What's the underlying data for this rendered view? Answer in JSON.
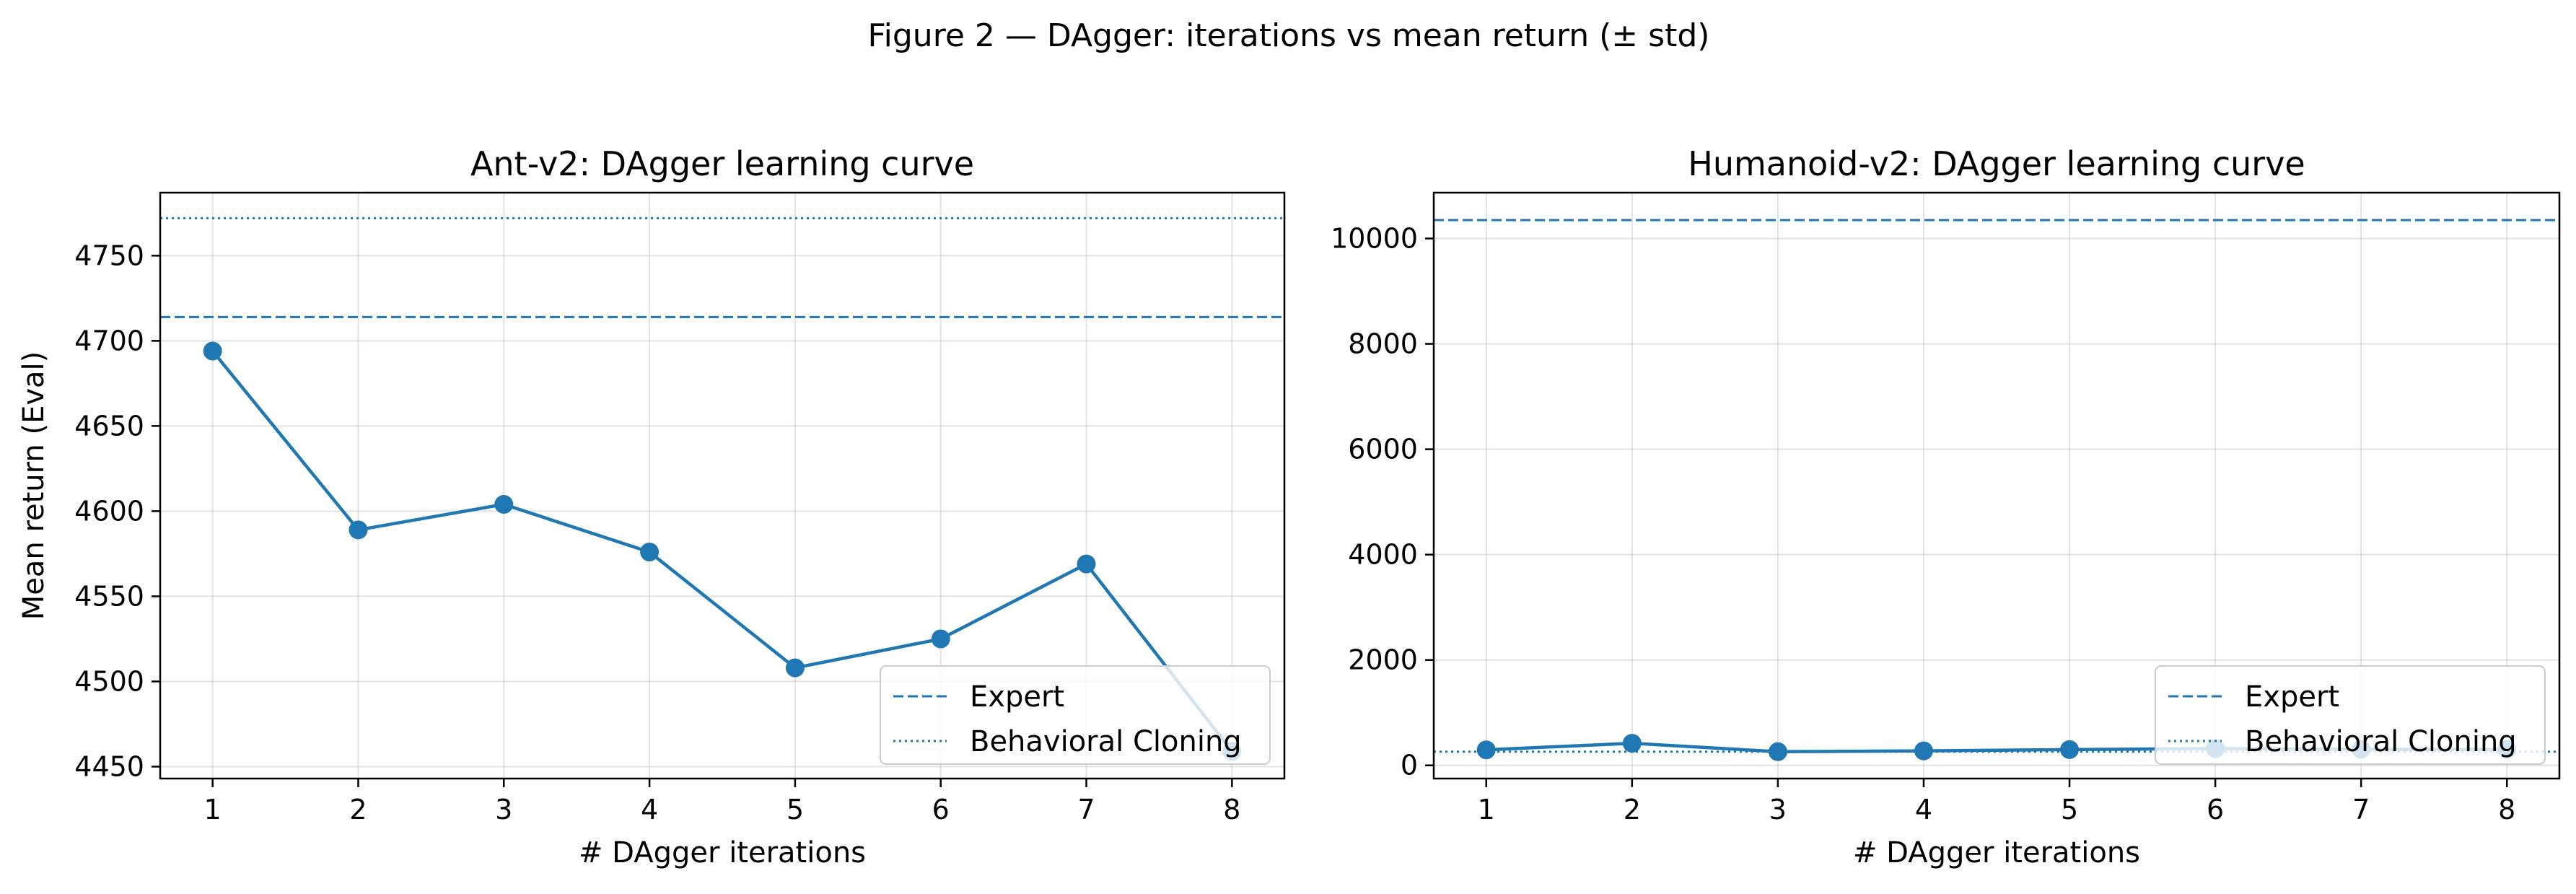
{
  "figure": {
    "suptitle": "Figure 2 — DAgger: iterations vs mean return (± std)"
  },
  "colors": {
    "line": "#1f77b4",
    "legend_bg": "#ffffff",
    "legend_border": "#cccccc"
  },
  "chart_data": [
    {
      "type": "line",
      "title": "Ant-v2: DAgger learning curve",
      "xlabel": "# DAgger iterations",
      "ylabel": "Mean return (Eval)",
      "x": [
        1,
        2,
        3,
        4,
        5,
        6,
        7,
        8
      ],
      "xlim": [
        0.64,
        8.36
      ],
      "ylim": [
        4443,
        4787
      ],
      "xticks": [
        1,
        2,
        3,
        4,
        5,
        6,
        7,
        8
      ],
      "yticks": [
        4450,
        4500,
        4550,
        4600,
        4650,
        4700,
        4750
      ],
      "series": [
        {
          "values": [
            4694,
            4589,
            4604,
            4576,
            4508,
            4525,
            4569,
            4459
          ]
        }
      ],
      "hlines": [
        {
          "name": "Expert",
          "value": 4714,
          "style": "dashed"
        },
        {
          "name": "Behavioral Cloning",
          "value": 4772,
          "style": "dotted"
        }
      ],
      "legend": {
        "loc": "lower right",
        "entries": [
          "Expert",
          "Behavioral Cloning"
        ]
      },
      "grid": true
    },
    {
      "type": "line",
      "title": "Humanoid-v2: DAgger learning curve",
      "xlabel": "# DAgger iterations",
      "ylabel": "",
      "x": [
        1,
        2,
        3,
        4,
        5,
        6,
        7,
        8
      ],
      "xlim": [
        0.64,
        8.36
      ],
      "ylim": [
        -250,
        10870
      ],
      "xticks": [
        1,
        2,
        3,
        4,
        5,
        6,
        7,
        8
      ],
      "yticks": [
        0,
        2000,
        4000,
        6000,
        8000,
        10000
      ],
      "series": [
        {
          "values": [
            295,
            420,
            260,
            275,
            300,
            320,
            305,
            305
          ]
        }
      ],
      "hlines": [
        {
          "name": "Expert",
          "value": 10350,
          "style": "dashed"
        },
        {
          "name": "Behavioral Cloning",
          "value": 260,
          "style": "dotted"
        }
      ],
      "legend": {
        "loc": "lower right",
        "entries": [
          "Expert",
          "Behavioral Cloning"
        ]
      },
      "grid": true
    }
  ]
}
